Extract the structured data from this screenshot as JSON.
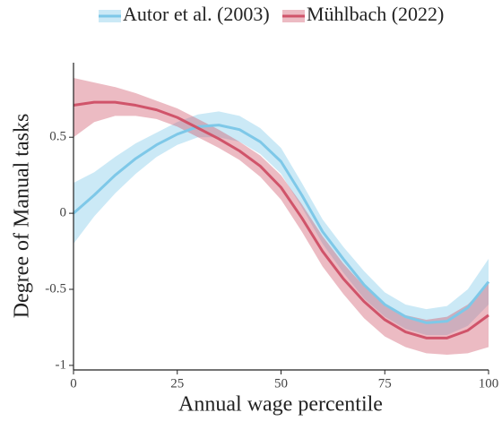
{
  "chart_data": {
    "type": "line",
    "x_label": "Annual wage percentile",
    "y_label": "Degree of Manual tasks",
    "x": [
      0,
      5,
      10,
      15,
      20,
      25,
      30,
      35,
      40,
      45,
      50,
      55,
      60,
      65,
      70,
      75,
      80,
      85,
      90,
      95,
      100
    ],
    "series": [
      {
        "name": "Autor et al. (2003)",
        "color": "#7ec8e8",
        "values": [
          0,
          0.12,
          0.25,
          0.36,
          0.45,
          0.52,
          0.57,
          0.58,
          0.55,
          0.47,
          0.34,
          0.12,
          -0.12,
          -0.3,
          -0.47,
          -0.6,
          -0.68,
          -0.72,
          -0.71,
          -0.62,
          -0.45
        ],
        "lower": [
          -0.2,
          -0.02,
          0.13,
          0.26,
          0.37,
          0.45,
          0.5,
          0.5,
          0.47,
          0.39,
          0.26,
          0.04,
          -0.2,
          -0.39,
          -0.56,
          -0.68,
          -0.76,
          -0.8,
          -0.8,
          -0.74,
          -0.6
        ],
        "upper": [
          0.2,
          0.27,
          0.37,
          0.46,
          0.53,
          0.6,
          0.65,
          0.67,
          0.64,
          0.56,
          0.43,
          0.2,
          -0.04,
          -0.22,
          -0.38,
          -0.52,
          -0.6,
          -0.63,
          -0.61,
          -0.5,
          -0.3
        ]
      },
      {
        "name": "Mühlbach (2022)",
        "color": "#d0546a",
        "values": [
          0.71,
          0.73,
          0.73,
          0.71,
          0.68,
          0.63,
          0.56,
          0.49,
          0.41,
          0.31,
          0.17,
          -0.03,
          -0.25,
          -0.43,
          -0.58,
          -0.7,
          -0.78,
          -0.82,
          -0.82,
          -0.77,
          -0.67
        ],
        "lower": [
          0.5,
          0.6,
          0.64,
          0.64,
          0.62,
          0.57,
          0.5,
          0.43,
          0.35,
          0.24,
          0.09,
          -0.12,
          -0.35,
          -0.53,
          -0.69,
          -0.81,
          -0.88,
          -0.92,
          -0.93,
          -0.92,
          -0.88
        ],
        "upper": [
          0.89,
          0.86,
          0.83,
          0.79,
          0.74,
          0.69,
          0.62,
          0.55,
          0.47,
          0.38,
          0.25,
          0.06,
          -0.15,
          -0.33,
          -0.48,
          -0.6,
          -0.67,
          -0.7,
          -0.68,
          -0.6,
          -0.46
        ]
      }
    ],
    "xlim": [
      0,
      100
    ],
    "xticks": [
      0,
      25,
      50,
      75,
      100
    ],
    "ylim": [
      -1.03,
      0.99
    ],
    "yticks": [
      -1,
      -0.5,
      0,
      0.5
    ],
    "legend": "top"
  }
}
